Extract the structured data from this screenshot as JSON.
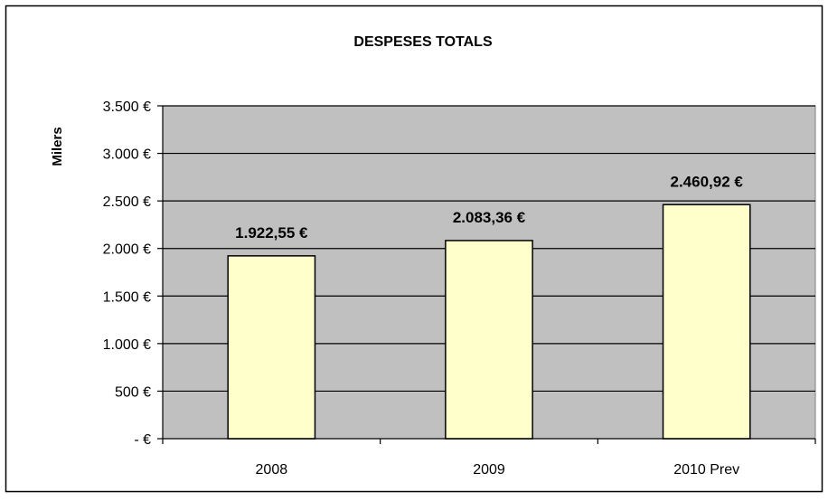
{
  "chart_data": {
    "type": "bar",
    "title": "DESPESES TOTALS",
    "xlabel": "",
    "ylabel": "Milers",
    "categories": [
      "2008",
      "2009",
      "2010 Prev"
    ],
    "values": [
      1922.55,
      2083.36,
      2460.92
    ],
    "data_labels": [
      "1.922,55 €",
      "2.083,36 €",
      "2.460,92 €"
    ],
    "ylim": [
      0,
      3500
    ],
    "y_ticks": [
      0,
      500,
      1000,
      1500,
      2000,
      2500,
      3000,
      3500
    ],
    "y_tick_labels": [
      "- €",
      "500 €",
      "1.000 €",
      "1.500 €",
      "2.000 €",
      "2.500 €",
      "3.000 €",
      "3.500 €"
    ],
    "grid": true,
    "legend": "none",
    "colors": {
      "plot_background": "#c0c0c0",
      "bar_fill": "#ffffcc",
      "bar_stroke": "#000000",
      "gridline": "#000000"
    }
  }
}
